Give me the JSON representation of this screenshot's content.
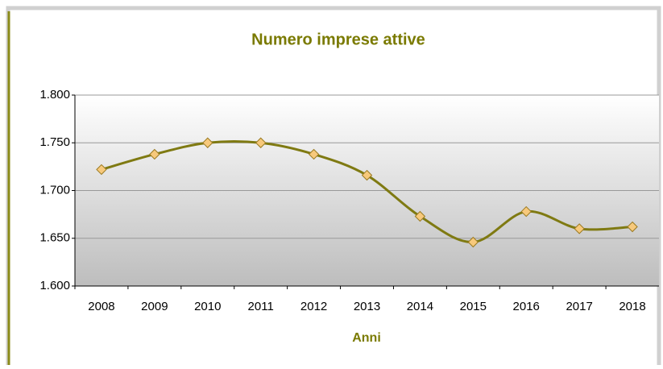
{
  "chart_data": {
    "type": "line",
    "title": "Numero imprese attive",
    "x_label": "Anni",
    "categories": [
      "2008",
      "2009",
      "2010",
      "2011",
      "2012",
      "2013",
      "2014",
      "2015",
      "2016",
      "2017",
      "2018"
    ],
    "values": [
      1722,
      1738,
      1750,
      1750,
      1738,
      1716,
      1673,
      1646,
      1678,
      1660,
      1662
    ],
    "color": "#7f7a12",
    "marker_color": "#f7c97c",
    "ylim": [
      1600,
      1800
    ],
    "yticks": [
      {
        "value": 1600,
        "label": "1.600"
      },
      {
        "value": 1650,
        "label": "1.650"
      },
      {
        "value": 1700,
        "label": "1.700"
      },
      {
        "value": 1750,
        "label": "1.750"
      },
      {
        "value": 1800,
        "label": "1.800"
      }
    ],
    "grid": true
  }
}
